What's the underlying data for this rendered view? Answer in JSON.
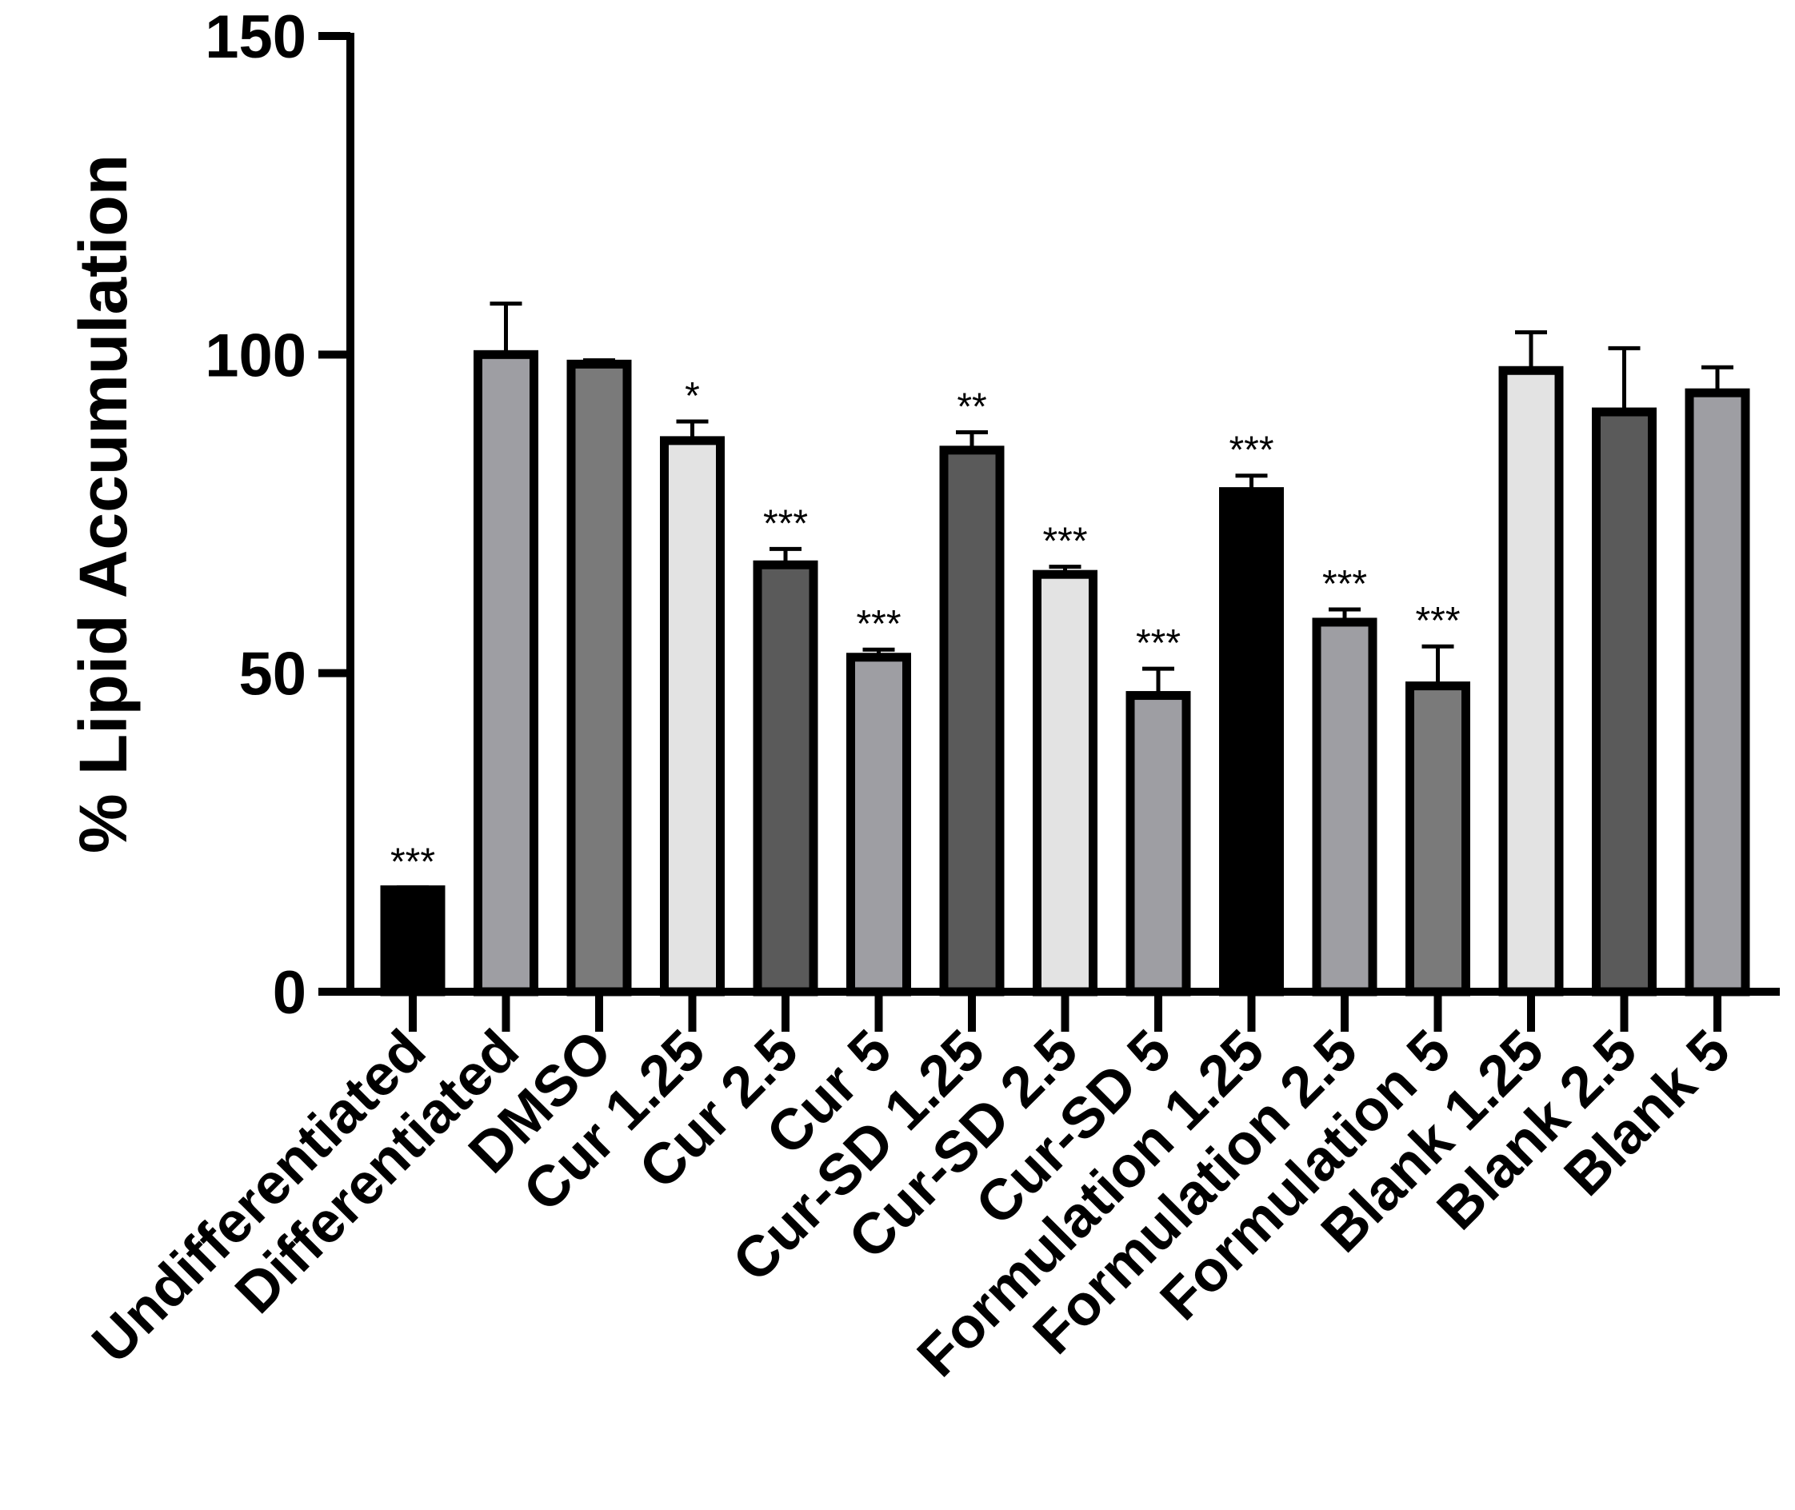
{
  "chart_data": {
    "type": "bar",
    "title": "",
    "xlabel": "",
    "ylabel": "% Lipid Accumulation",
    "ylim": [
      0,
      150
    ],
    "yticks": [
      0,
      50,
      100,
      150
    ],
    "grid": false,
    "categories": [
      "Undifferentiated",
      "Differentiated",
      "DMSO",
      "Cur 1.25",
      "Cur 2.5",
      "Cur 5",
      "Cur-SD 1.25",
      "Cur-SD 2.5",
      "Cur-SD 5",
      "Formulation 1.25",
      "Formulation 2.5",
      "Formulation 5",
      "Blank 1.25",
      "Blank 2.5",
      "Blank 5"
    ],
    "values": [
      16,
      100,
      98.5,
      86.5,
      67,
      52.5,
      85,
      65.5,
      46.5,
      78.5,
      58,
      48,
      97.5,
      91,
      94
    ],
    "errors": [
      0.4,
      8,
      0.6,
      3,
      2.5,
      1.2,
      2.8,
      1.2,
      4.2,
      2.5,
      2,
      6.2,
      6,
      10,
      4
    ],
    "significance": [
      "***",
      "",
      "",
      "*",
      "***",
      "***",
      "**",
      "***",
      "***",
      "***",
      "***",
      "***",
      "",
      "",
      ""
    ],
    "bar_colors": [
      "#000000",
      "#9e9ea3",
      "#7a7a7a",
      "#e3e3e3",
      "#5a5a5a",
      "#9e9ea3",
      "#5a5a5a",
      "#e3e3e3",
      "#9e9ea3",
      "#000000",
      "#9e9ea3",
      "#7a7a7a",
      "#e3e3e3",
      "#5a5a5a",
      "#9e9ea3"
    ],
    "outline_color": "#000000"
  }
}
